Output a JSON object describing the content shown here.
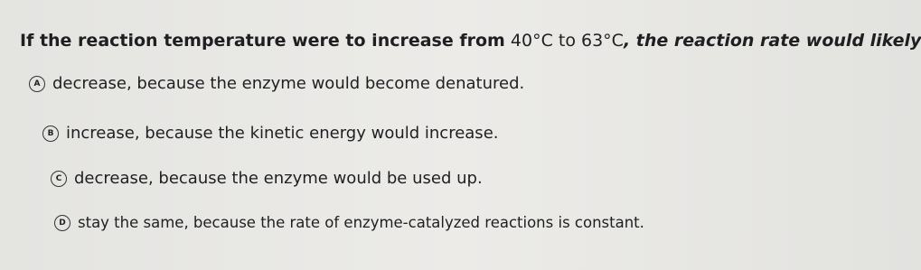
{
  "question": {
    "lead": "If the reaction temperature were to increase from",
    "range": "40°C to 63°C",
    "tail": ", the reaction rate would likely"
  },
  "options": [
    {
      "letter": "A",
      "text": "decrease, because the enzyme would become denatured."
    },
    {
      "letter": "B",
      "text": "increase, because the kinetic energy would increase."
    },
    {
      "letter": "C",
      "text": "decrease, because the enzyme would be used up."
    },
    {
      "letter": "D",
      "text": "stay the same, because the rate of enzyme-catalyzed reactions is constant."
    }
  ]
}
